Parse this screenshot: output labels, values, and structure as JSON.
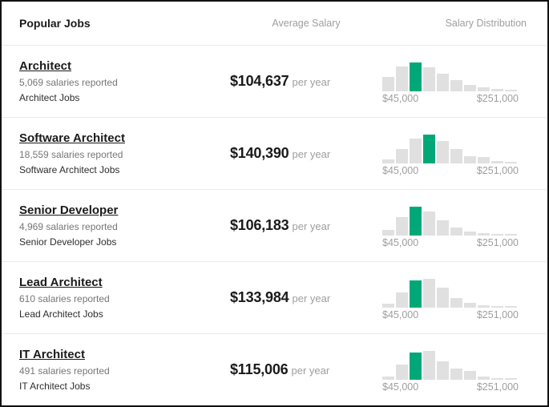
{
  "header": {
    "jobs": "Popular Jobs",
    "salary": "Average Salary",
    "distribution": "Salary Distribution"
  },
  "axis": {
    "min": "$45,000",
    "max": "$251,000"
  },
  "colors": {
    "highlight_green": "#00A878",
    "bar_gray": "#E0E0E0"
  },
  "rows": [
    {
      "title": "Architect",
      "reported": "5,069 salaries reported",
      "link": "Architect Jobs",
      "salary": "$104,637",
      "period": "per year",
      "bars": [
        0.5,
        0.86,
        1.0,
        0.83,
        0.6,
        0.38,
        0.23,
        0.14,
        0.09,
        0.06
      ],
      "highlight_index": 2
    },
    {
      "title": "Software Architect",
      "reported": "18,559 salaries reported",
      "link": "Software Architect Jobs",
      "salary": "$140,390",
      "period": "per year",
      "bars": [
        0.15,
        0.5,
        0.85,
        1.0,
        0.78,
        0.5,
        0.26,
        0.21,
        0.08,
        0.04
      ],
      "highlight_index": 3
    },
    {
      "title": "Senior Developer",
      "reported": "4,969 salaries reported",
      "link": "Senior Developer Jobs",
      "salary": "$106,183",
      "period": "per year",
      "bars": [
        0.19,
        0.63,
        1.0,
        0.82,
        0.52,
        0.27,
        0.15,
        0.08,
        0.05,
        0.03
      ],
      "highlight_index": 2
    },
    {
      "title": "Lead Architect",
      "reported": "610 salaries reported",
      "link": "Lead Architect Jobs",
      "salary": "$133,984",
      "period": "per year",
      "bars": [
        0.13,
        0.52,
        0.95,
        1.0,
        0.7,
        0.33,
        0.17,
        0.08,
        0.05,
        0.03
      ],
      "highlight_index": 2
    },
    {
      "title": "IT Architect",
      "reported": "491 salaries reported",
      "link": "IT Architect Jobs",
      "salary": "$115,006",
      "period": "per year",
      "bars": [
        0.12,
        0.52,
        0.95,
        1.0,
        0.65,
        0.38,
        0.3,
        0.1,
        0.06,
        0.05
      ],
      "highlight_index": 2
    }
  ],
  "chart_data": [
    {
      "type": "bar",
      "title": "Architect salary distribution",
      "x_range_labels": [
        "$45,000",
        "$251,000"
      ],
      "values": [
        0.5,
        0.86,
        1.0,
        0.83,
        0.6,
        0.38,
        0.23,
        0.14,
        0.09,
        0.06
      ],
      "highlight_index": 2,
      "highlight_color": "#00A878",
      "bar_color": "#E0E0E0",
      "average": "$104,637"
    },
    {
      "type": "bar",
      "title": "Software Architect salary distribution",
      "x_range_labels": [
        "$45,000",
        "$251,000"
      ],
      "values": [
        0.15,
        0.5,
        0.85,
        1.0,
        0.78,
        0.5,
        0.26,
        0.21,
        0.08,
        0.04
      ],
      "highlight_index": 3,
      "highlight_color": "#00A878",
      "bar_color": "#E0E0E0",
      "average": "$140,390"
    },
    {
      "type": "bar",
      "title": "Senior Developer salary distribution",
      "x_range_labels": [
        "$45,000",
        "$251,000"
      ],
      "values": [
        0.19,
        0.63,
        1.0,
        0.82,
        0.52,
        0.27,
        0.15,
        0.08,
        0.05,
        0.03
      ],
      "highlight_index": 2,
      "highlight_color": "#00A878",
      "bar_color": "#E0E0E0",
      "average": "$106,183"
    },
    {
      "type": "bar",
      "title": "Lead Architect salary distribution",
      "x_range_labels": [
        "$45,000",
        "$251,000"
      ],
      "values": [
        0.13,
        0.52,
        0.95,
        1.0,
        0.7,
        0.33,
        0.17,
        0.08,
        0.05,
        0.03
      ],
      "highlight_index": 2,
      "highlight_color": "#00A878",
      "bar_color": "#E0E0E0",
      "average": "$133,984"
    },
    {
      "type": "bar",
      "title": "IT Architect salary distribution",
      "x_range_labels": [
        "$45,000",
        "$251,000"
      ],
      "values": [
        0.12,
        0.52,
        0.95,
        1.0,
        0.65,
        0.38,
        0.3,
        0.1,
        0.06,
        0.05
      ],
      "highlight_index": 2,
      "highlight_color": "#00A878",
      "bar_color": "#E0E0E0",
      "average": "$115,006"
    }
  ]
}
